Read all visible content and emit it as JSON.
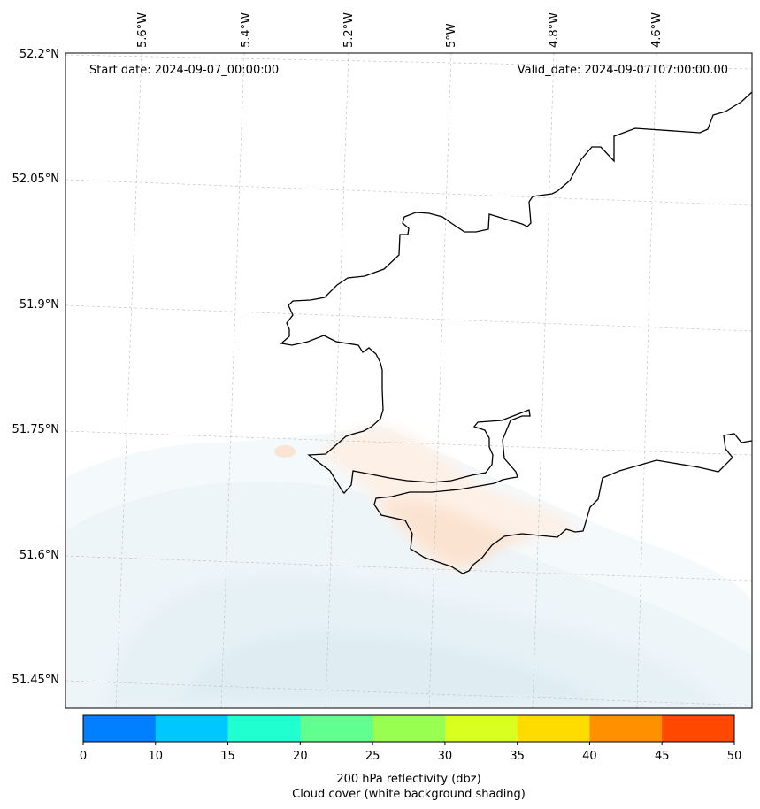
{
  "chart_data": {
    "type": "heatmap",
    "title": "",
    "start_date_label": "Start date: 2024-09-07_00:00:00",
    "valid_date_label": "Valid_date: 2024-09-07T07:00:00.00",
    "lon_ticks": [
      "5.6°W",
      "5.4°W",
      "5.2°W",
      "5°W",
      "4.8°W",
      "4.6°W"
    ],
    "lat_ticks": [
      "52.2°N",
      "52.05°N",
      "51.9°N",
      "51.75°N",
      "51.6°N",
      "51.45°N"
    ],
    "lon_range": [
      -5.75,
      -4.45
    ],
    "lat_range": [
      51.42,
      52.2
    ],
    "colorbar": {
      "label_line1": "200 hPa reflectivity (dbz)",
      "label_line2": "Cloud cover (white background shading)",
      "ticks": [
        "0",
        "10",
        "15",
        "20",
        "25",
        "30",
        "35",
        "40",
        "45",
        "50"
      ],
      "colors": [
        "#0080ff",
        "#00c8ff",
        "#20ffd0",
        "#60ff90",
        "#98ff50",
        "#d8ff20",
        "#ffdc00",
        "#ff9000",
        "#ff4800"
      ]
    }
  }
}
